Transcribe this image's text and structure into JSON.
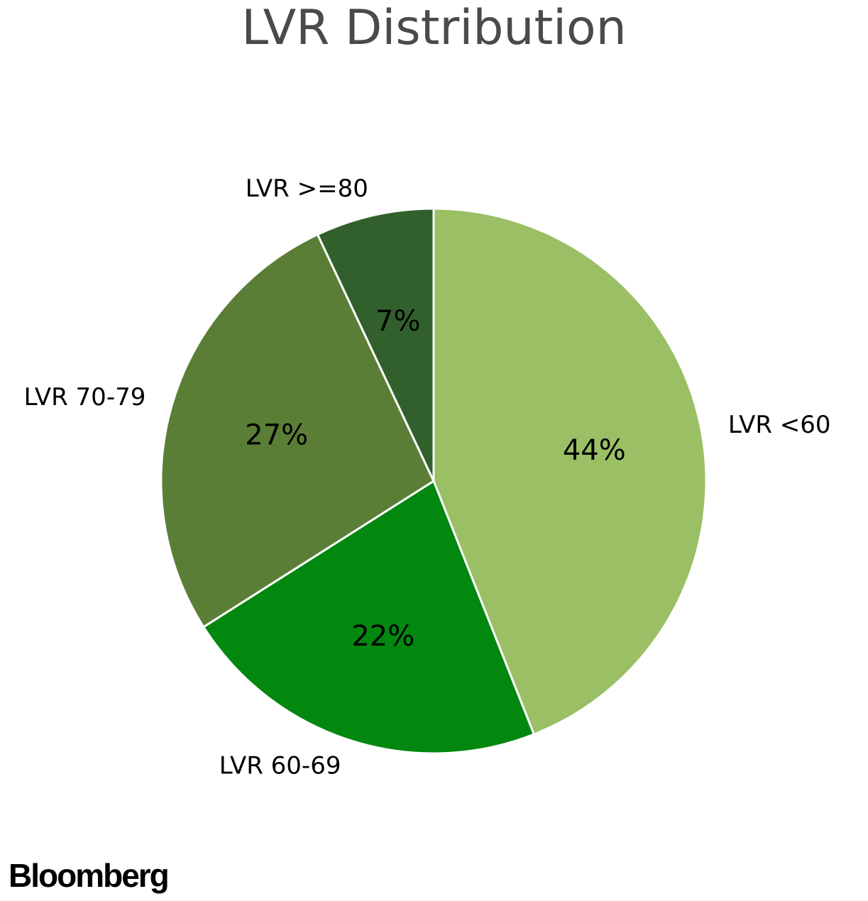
{
  "chart_data": {
    "type": "pie",
    "title": "LVR Distribution",
    "start_angle_deg": 90,
    "direction": "clockwise",
    "slices": [
      {
        "label": "LVR <60",
        "value": 44,
        "value_label": "44%",
        "color": "#9abf65"
      },
      {
        "label": "LVR 60-69",
        "value": 22,
        "value_label": "22%",
        "color": "#02870f"
      },
      {
        "label": "LVR 70-79",
        "value": 27,
        "value_label": "27%",
        "color": "#5b7e37"
      },
      {
        "label": "LVR >=80",
        "value": 7,
        "value_label": "7%",
        "color": "#32602d"
      }
    ]
  },
  "branding": {
    "logo_text": "Bloomberg"
  },
  "colors": {
    "title": "#4a4a4a",
    "slice_border": "#ffffff",
    "background": "#ffffff"
  }
}
